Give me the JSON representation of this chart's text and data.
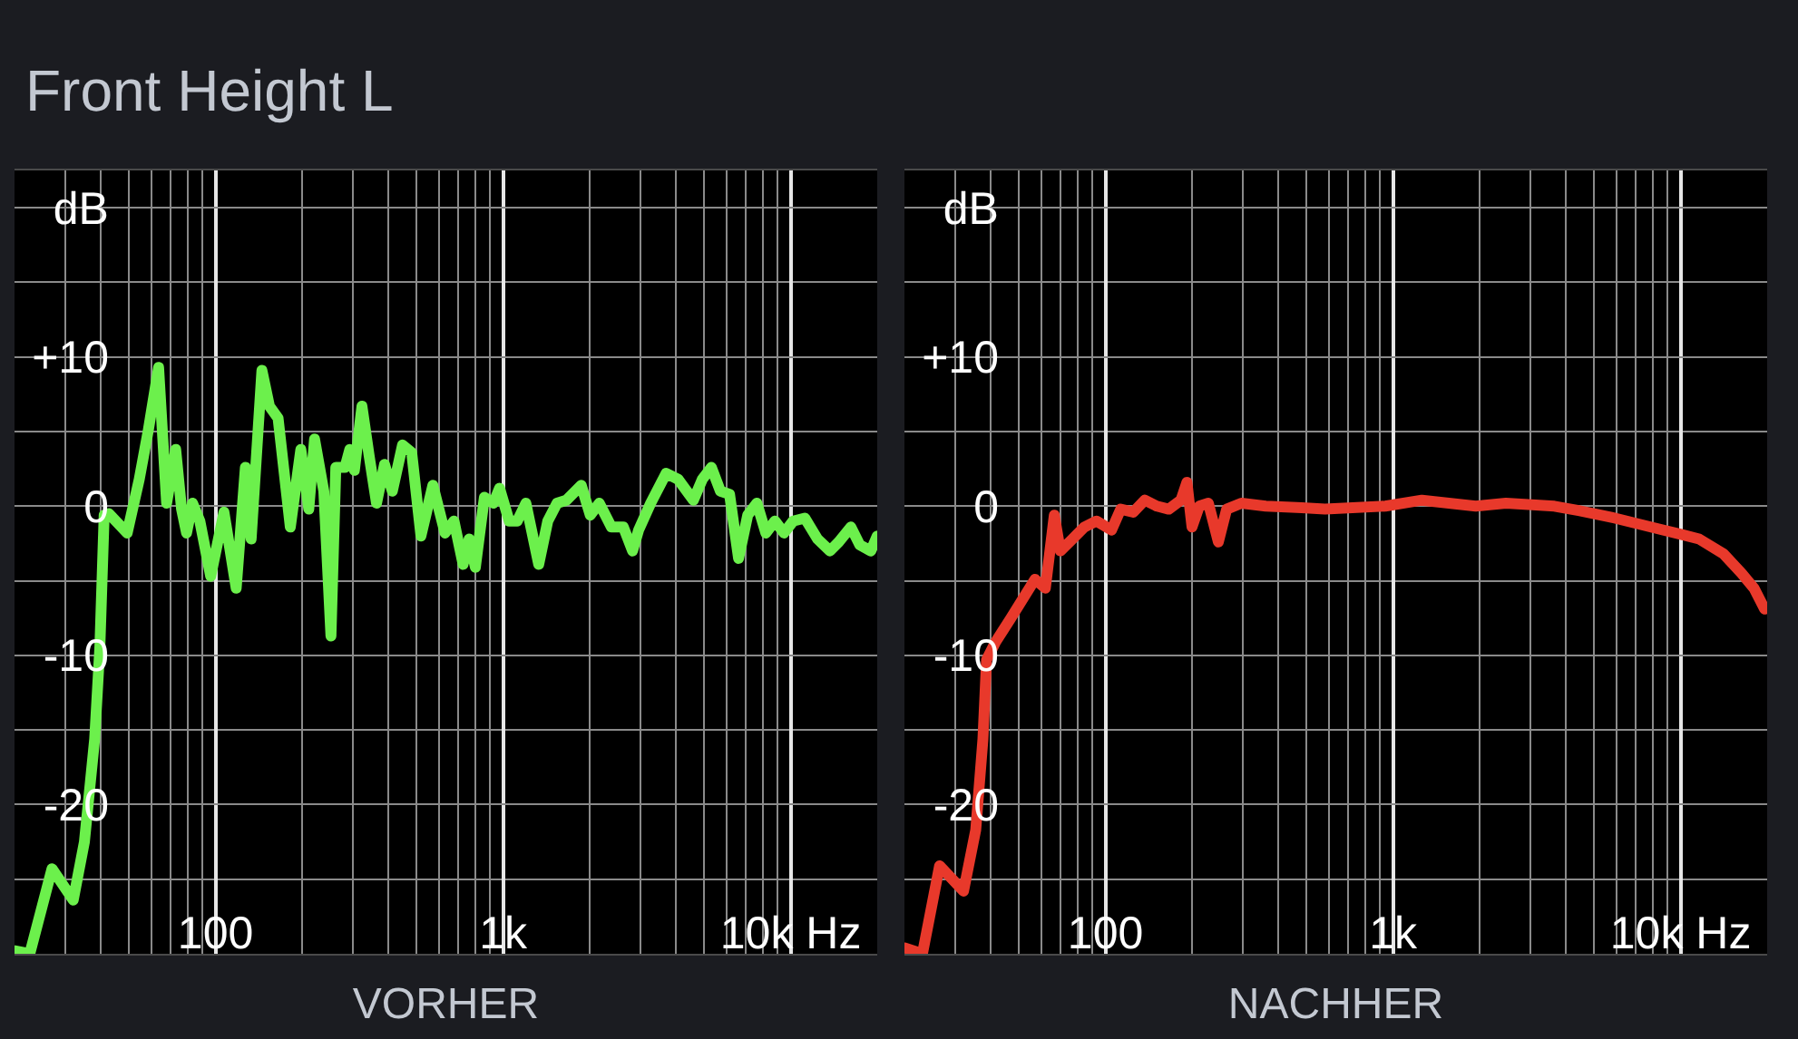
{
  "chart_data": [
    {
      "type": "line",
      "title": "Front Height L",
      "xlabel": "VORHER",
      "log": "x",
      "grid": true,
      "xlim": [
        20,
        20000
      ],
      "xticks": [
        {
          "value": 30,
          "label": null
        },
        {
          "value": 40,
          "label": null
        },
        {
          "value": 50,
          "label": null
        },
        {
          "value": 60,
          "label": null
        },
        {
          "value": 70,
          "label": null
        },
        {
          "value": 80,
          "label": null
        },
        {
          "value": 90,
          "label": null
        },
        100,
        {
          "value": 200,
          "label": null
        },
        {
          "value": 300,
          "label": null
        },
        {
          "value": 400,
          "label": null
        },
        {
          "value": 500,
          "label": null
        },
        {
          "value": 600,
          "label": null
        },
        {
          "value": 700,
          "label": null
        },
        {
          "value": 800,
          "label": null
        },
        {
          "value": 900,
          "label": null
        },
        {
          "value": 1000,
          "label": "1k"
        },
        {
          "value": 2000,
          "label": null
        },
        {
          "value": 3000,
          "label": null
        },
        {
          "value": 4000,
          "label": null
        },
        {
          "value": 5000,
          "label": null
        },
        {
          "value": 6000,
          "label": null
        },
        {
          "value": 7000,
          "label": null
        },
        {
          "value": 8000,
          "label": null
        },
        {
          "value": 9000,
          "label": null
        },
        {
          "value": 10000,
          "label": "10k Hz"
        }
      ],
      "ylim": [
        -30,
        22.5
      ],
      "yticks": [
        {
          "value": 20,
          "label": "dB"
        },
        {
          "value": 15,
          "label": null
        },
        {
          "value": 10,
          "label": "+10"
        },
        {
          "value": 5,
          "label": null
        },
        0,
        {
          "value": -5,
          "label": null
        },
        -10,
        {
          "value": -15,
          "label": null
        },
        -20,
        {
          "value": -25,
          "label": null
        }
      ],
      "x": [
        20,
        22.6,
        27,
        32,
        35,
        38,
        39.6,
        41,
        42.6,
        49.3,
        54.3,
        58.4,
        63.4,
        67.6,
        72.7,
        76.2,
        79.3,
        83.2,
        88.2,
        96.2,
        107,
        118,
        127,
        133,
        145,
        154,
        165,
        182,
        198,
        211,
        221,
        238,
        252,
        262,
        282,
        293,
        304,
        323,
        342,
        363,
        387,
        412,
        447,
        481,
        518,
        570,
        628,
        675,
        726,
        762,
        801,
        861,
        926,
        972,
        1050,
        1120,
        1200,
        1330,
        1430,
        1540,
        1660,
        1870,
        2010,
        2160,
        2380,
        2620,
        2820,
        2960,
        3260,
        3690,
        4060,
        4590,
        4930,
        5300,
        5700,
        6130,
        6590,
        7090,
        7630,
        8200,
        8820,
        9480,
        10200,
        11200,
        12400,
        13700,
        14700,
        16200,
        17400,
        19000,
        20000
      ],
      "series": [
        {
          "color": "#6cf04c",
          "values": [
            -29.8,
            -30,
            -24.3,
            -26.4,
            -22.5,
            -15.6,
            -9.5,
            -0.6,
            -0.5,
            -1.8,
            1.8,
            5.1,
            9.3,
            0.2,
            3.8,
            -0.2,
            -1.8,
            0.2,
            -1.0,
            -4.7,
            -0.4,
            -5.5,
            2.6,
            -2.2,
            9.1,
            6.7,
            5.9,
            -1.4,
            3.8,
            -0.2,
            4.5,
            1.0,
            -8.7,
            2.6,
            2.6,
            3.8,
            2.4,
            6.7,
            3.4,
            0.2,
            2.8,
            1.0,
            4.1,
            3.6,
            -2.0,
            1.4,
            -1.8,
            -1.0,
            -3.9,
            -2.2,
            -4.1,
            0.6,
            0.2,
            1.2,
            -1.0,
            -1.0,
            0.2,
            -3.9,
            -1.0,
            0.2,
            0.4,
            1.4,
            -0.6,
            0.2,
            -1.4,
            -1.4,
            -3.0,
            -1.6,
            0.2,
            2.2,
            1.8,
            0.4,
            1.8,
            2.6,
            1.0,
            0.8,
            -3.5,
            -0.6,
            0.2,
            -1.8,
            -1.0,
            -1.8,
            -1.0,
            -0.8,
            -2.2,
            -3.0,
            -2.4,
            -1.4,
            -2.6,
            -3.0,
            -2.0
          ]
        }
      ]
    },
    {
      "type": "line",
      "xlabel": "NACHHER",
      "log": "x",
      "grid": true,
      "xlim": [
        20,
        20000
      ],
      "xticks": [
        {
          "value": 30,
          "label": null
        },
        {
          "value": 40,
          "label": null
        },
        {
          "value": 50,
          "label": null
        },
        {
          "value": 60,
          "label": null
        },
        {
          "value": 70,
          "label": null
        },
        {
          "value": 80,
          "label": null
        },
        {
          "value": 90,
          "label": null
        },
        100,
        {
          "value": 200,
          "label": null
        },
        {
          "value": 300,
          "label": null
        },
        {
          "value": 400,
          "label": null
        },
        {
          "value": 500,
          "label": null
        },
        {
          "value": 600,
          "label": null
        },
        {
          "value": 700,
          "label": null
        },
        {
          "value": 800,
          "label": null
        },
        {
          "value": 900,
          "label": null
        },
        {
          "value": 1000,
          "label": "1k"
        },
        {
          "value": 2000,
          "label": null
        },
        {
          "value": 3000,
          "label": null
        },
        {
          "value": 4000,
          "label": null
        },
        {
          "value": 5000,
          "label": null
        },
        {
          "value": 6000,
          "label": null
        },
        {
          "value": 7000,
          "label": null
        },
        {
          "value": 8000,
          "label": null
        },
        {
          "value": 9000,
          "label": null
        },
        {
          "value": 10000,
          "label": "10k Hz"
        }
      ],
      "ylim": [
        -30,
        22.5
      ],
      "yticks": [
        {
          "value": 20,
          "label": "dB"
        },
        {
          "value": 15,
          "label": null
        },
        {
          "value": 10,
          "label": "+10"
        },
        {
          "value": 5,
          "label": null
        },
        0,
        {
          "value": -5,
          "label": null
        },
        -10,
        {
          "value": -15,
          "label": null
        },
        -20,
        {
          "value": -25,
          "label": null
        }
      ],
      "x": [
        20,
        23.1,
        26.5,
        32.1,
        35.4,
        37.5,
        38.6,
        41.5,
        46.9,
        56.9,
        61.8,
        66.4,
        69.7,
        76.8,
        84.5,
        93.1,
        105,
        113,
        125,
        137,
        151,
        166,
        183,
        192,
        200,
        212,
        228,
        247,
        264,
        297,
        361,
        482,
        580,
        940,
        1260,
        1940,
        2470,
        3640,
        4420,
        5910,
        8290,
        10100,
        11600,
        14100,
        16300,
        18000,
        19600
      ],
      "series": [
        {
          "color": "#e8392b",
          "values": [
            -29.6,
            -30,
            -24.1,
            -25.8,
            -21.7,
            -15.6,
            -10.3,
            -9.1,
            -7.5,
            -4.9,
            -5.5,
            -0.6,
            -3.0,
            -2.2,
            -1.4,
            -1.0,
            -1.6,
            -0.2,
            -0.4,
            0.4,
            0,
            -0.2,
            0.4,
            1.6,
            -1.4,
            0,
            0.2,
            -2.4,
            -0.2,
            0.2,
            0,
            -0.1,
            -0.2,
            0,
            0.4,
            0,
            0.2,
            0,
            -0.3,
            -0.8,
            -1.5,
            -1.9,
            -2.2,
            -3.2,
            -4.5,
            -5.5,
            -6.9
          ]
        }
      ]
    }
  ]
}
